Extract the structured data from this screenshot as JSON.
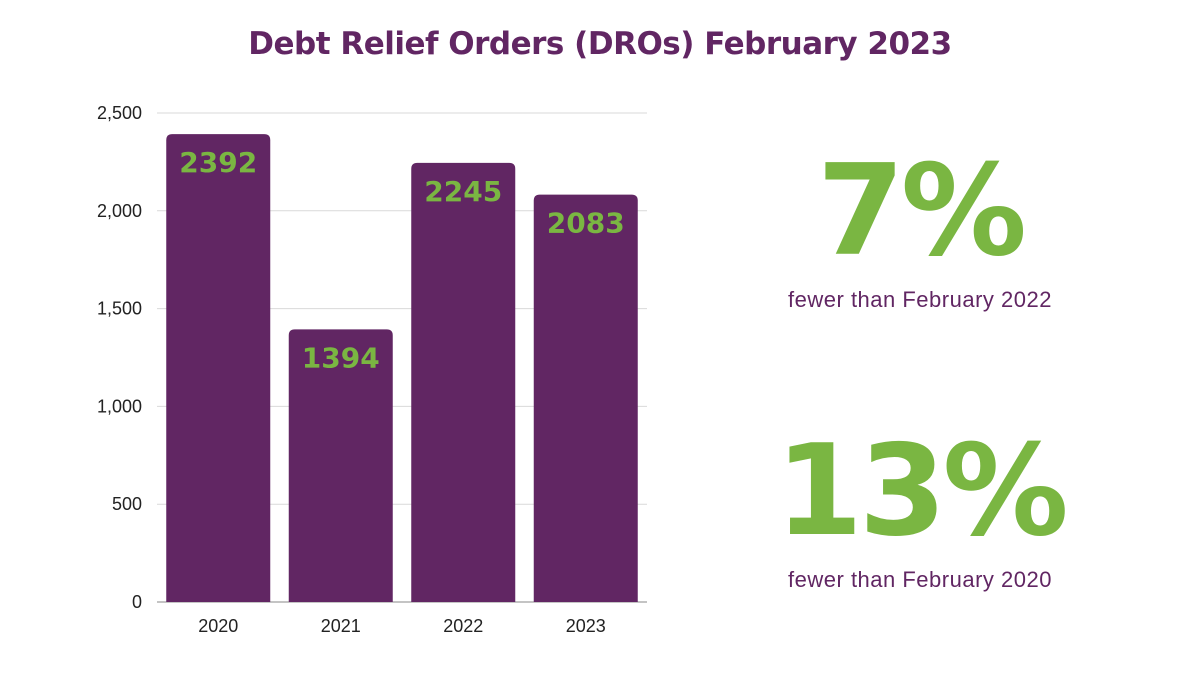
{
  "colors": {
    "brand_purple": "#612663",
    "accent_green": "#7ab642",
    "axis_text": "#222222",
    "grid": "#d9d9d9"
  },
  "title": "Debt Relief Orders (DROs) February 2023",
  "chart_data": {
    "type": "bar",
    "categories": [
      "2020",
      "2021",
      "2022",
      "2023"
    ],
    "values": [
      2392,
      1394,
      2245,
      2083
    ],
    "data_labels": [
      "2392",
      "1394",
      "2245",
      "2083"
    ],
    "title": "Debt Relief Orders (DROs) February 2023",
    "xlabel": "",
    "ylabel": "",
    "ylim": [
      0,
      2500
    ],
    "yticks": [
      0,
      500,
      1000,
      1500,
      2000,
      2500
    ],
    "ytick_labels": [
      "0",
      "500",
      "1,000",
      "1,500",
      "2,000",
      "2,500"
    ],
    "grid": true,
    "legend": "none"
  },
  "stats": [
    {
      "value": "7%",
      "caption": "fewer than February 2022"
    },
    {
      "value": "13%",
      "caption": "fewer than February 2020"
    }
  ]
}
